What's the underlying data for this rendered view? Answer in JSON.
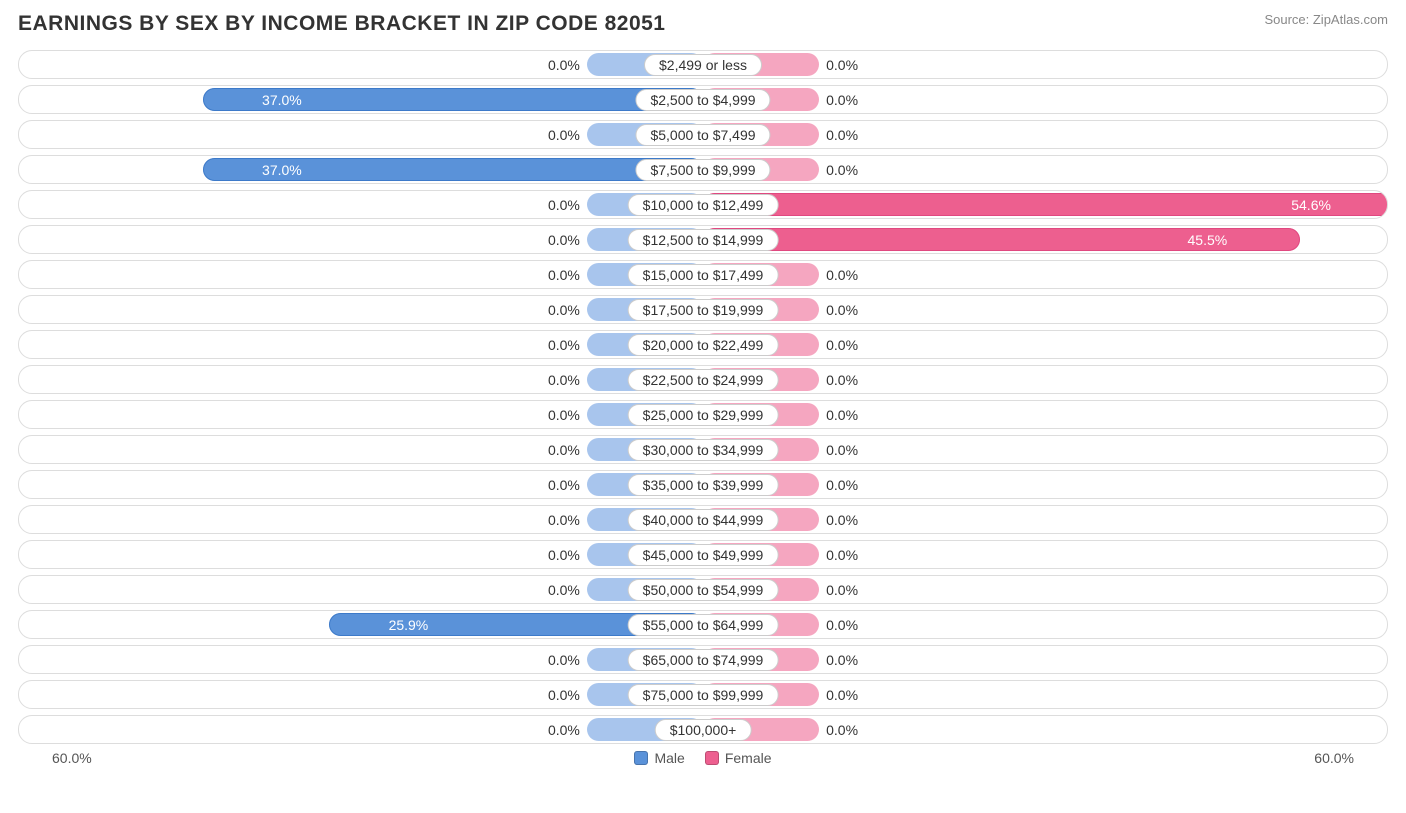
{
  "title": "EARNINGS BY SEX BY INCOME BRACKET IN ZIP CODE 82051",
  "source": "Source: ZipAtlas.com",
  "chart": {
    "type": "diverging-bar",
    "axis_max": 60.0,
    "axis_label_left": "60.0%",
    "axis_label_right": "60.0%",
    "min_bar_pct": 5.5,
    "label_pill_half_pct": 11.5,
    "colors": {
      "male_bg": "#a8c5ed",
      "male_fg": "#5a92d9",
      "female_bg": "#f5a6c0",
      "female_fg": "#ed5f8f",
      "row_border": "#dddddd",
      "background": "#ffffff",
      "text": "#333333"
    },
    "legend": [
      {
        "label": "Male",
        "color": "#5a92d9"
      },
      {
        "label": "Female",
        "color": "#ed5f8f"
      }
    ],
    "rows": [
      {
        "category": "$2,499 or less",
        "male": 0.0,
        "female": 0.0
      },
      {
        "category": "$2,500 to $4,999",
        "male": 37.0,
        "female": 0.0
      },
      {
        "category": "$5,000 to $7,499",
        "male": 0.0,
        "female": 0.0
      },
      {
        "category": "$7,500 to $9,999",
        "male": 37.0,
        "female": 0.0
      },
      {
        "category": "$10,000 to $12,499",
        "male": 0.0,
        "female": 54.6
      },
      {
        "category": "$12,500 to $14,999",
        "male": 0.0,
        "female": 45.5
      },
      {
        "category": "$15,000 to $17,499",
        "male": 0.0,
        "female": 0.0
      },
      {
        "category": "$17,500 to $19,999",
        "male": 0.0,
        "female": 0.0
      },
      {
        "category": "$20,000 to $22,499",
        "male": 0.0,
        "female": 0.0
      },
      {
        "category": "$22,500 to $24,999",
        "male": 0.0,
        "female": 0.0
      },
      {
        "category": "$25,000 to $29,999",
        "male": 0.0,
        "female": 0.0
      },
      {
        "category": "$30,000 to $34,999",
        "male": 0.0,
        "female": 0.0
      },
      {
        "category": "$35,000 to $39,999",
        "male": 0.0,
        "female": 0.0
      },
      {
        "category": "$40,000 to $44,999",
        "male": 0.0,
        "female": 0.0
      },
      {
        "category": "$45,000 to $49,999",
        "male": 0.0,
        "female": 0.0
      },
      {
        "category": "$50,000 to $54,999",
        "male": 0.0,
        "female": 0.0
      },
      {
        "category": "$55,000 to $64,999",
        "male": 25.9,
        "female": 0.0
      },
      {
        "category": "$65,000 to $74,999",
        "male": 0.0,
        "female": 0.0
      },
      {
        "category": "$75,000 to $99,999",
        "male": 0.0,
        "female": 0.0
      },
      {
        "category": "$100,000+",
        "male": 0.0,
        "female": 0.0
      }
    ]
  }
}
